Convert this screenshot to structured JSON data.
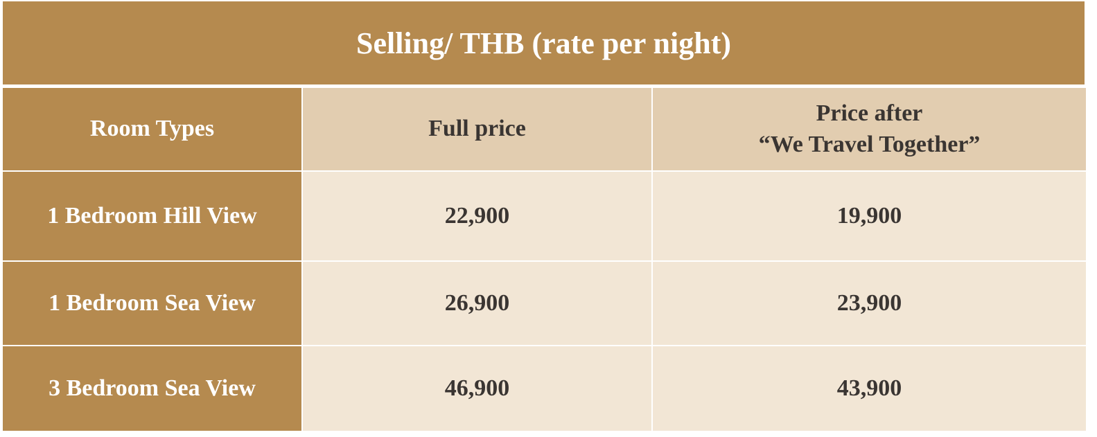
{
  "table": {
    "title": "Selling/ THB (rate per night)",
    "header": [
      "Room Types",
      "Full price",
      [
        "Price after",
        "“We Travel Together”"
      ]
    ],
    "rows": [
      [
        "1 Bedroom Hill View",
        "22,900",
        "19,900"
      ],
      [
        "1 Bedroom Sea View",
        "26,900",
        "23,900"
      ],
      [
        "3 Bedroom Sea View",
        "46,900",
        "43,900"
      ]
    ]
  }
}
